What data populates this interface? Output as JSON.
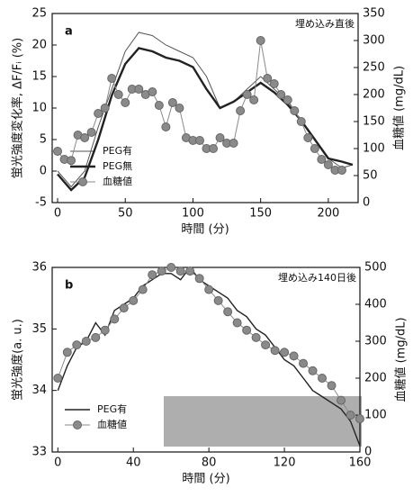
{
  "chart_data": [
    {
      "type": "line",
      "panel_label": "a",
      "annotation": "埋め込み直後",
      "x_label": "時間 (分)",
      "y_label": "蛍光強度変化率, ΔF/Fᵢ (%)",
      "y2_label": "血糖値 (mg/dL)",
      "xlim": [
        -4,
        222
      ],
      "xticks": [
        0,
        50,
        100,
        150,
        200
      ],
      "ylim": [
        -5,
        25
      ],
      "yticks": [
        -5,
        0,
        5,
        10,
        15,
        20,
        25
      ],
      "y2lim": [
        0,
        350
      ],
      "y2ticks": [
        0,
        50,
        100,
        150,
        200,
        250,
        300,
        350
      ],
      "series": [
        {
          "name": "PEG有",
          "color": "#555555",
          "line_width": 1,
          "x": [
            0,
            10,
            20,
            30,
            40,
            50,
            60,
            70,
            80,
            90,
            100,
            110,
            120,
            130,
            140,
            150,
            160,
            170,
            180,
            190,
            200,
            210,
            218
          ],
          "values": [
            0,
            -2.5,
            0,
            7,
            13,
            19,
            22,
            21.5,
            20,
            19,
            18,
            15,
            10,
            11,
            13,
            15,
            13,
            11,
            8,
            5,
            2,
            0.5,
            1
          ]
        },
        {
          "name": "PEG無",
          "color": "#222222",
          "line_width": 2.4,
          "x": [
            0,
            10,
            20,
            30,
            40,
            50,
            60,
            70,
            80,
            90,
            100,
            110,
            120,
            130,
            140,
            150,
            160,
            170,
            180,
            190,
            200,
            210,
            218
          ],
          "values": [
            -0.5,
            -3,
            -1,
            5,
            12,
            17,
            19.5,
            19,
            18,
            17.5,
            16.5,
            13,
            10,
            11,
            12.5,
            14,
            12.5,
            10.5,
            8,
            5,
            2,
            1.5,
            1
          ]
        },
        {
          "name": "血糖値",
          "color": "#8a8a8a",
          "axis": "y2",
          "marker": "circle",
          "x": [
            0,
            5,
            10,
            15,
            20,
            25,
            30,
            35,
            40,
            45,
            50,
            55,
            60,
            65,
            70,
            75,
            80,
            85,
            90,
            95,
            100,
            105,
            110,
            115,
            120,
            125,
            130,
            135,
            140,
            145,
            150,
            155,
            160,
            165,
            170,
            175,
            180,
            185,
            190,
            195,
            200,
            205,
            210
          ],
          "values": [
            95,
            80,
            78,
            125,
            120,
            130,
            165,
            175,
            230,
            200,
            185,
            210,
            210,
            200,
            205,
            180,
            140,
            185,
            175,
            120,
            115,
            115,
            100,
            100,
            120,
            110,
            110,
            170,
            200,
            190,
            300,
            230,
            220,
            200,
            190,
            170,
            150,
            120,
            100,
            80,
            70,
            60,
            60
          ]
        }
      ]
    },
    {
      "type": "line",
      "panel_label": "b",
      "annotation": "埋め込み140日後",
      "x_label": "時間 (分)",
      "y_label": "蛍光強度(a. u.)",
      "y2_label": "血糖値 (mg/dL)",
      "xlim": [
        -3,
        160
      ],
      "xticks": [
        0,
        40,
        80,
        120,
        160
      ],
      "ylim": [
        33,
        36
      ],
      "yticks": [
        33,
        34,
        35,
        36
      ],
      "y2lim": [
        0,
        500
      ],
      "y2ticks": [
        0,
        100,
        200,
        300,
        400,
        500
      ],
      "series": [
        {
          "name": "PEG有",
          "color": "#222222",
          "line_width": 1.4,
          "x": [
            0,
            5,
            10,
            15,
            20,
            25,
            30,
            35,
            40,
            45,
            50,
            55,
            60,
            65,
            70,
            75,
            80,
            85,
            90,
            95,
            100,
            105,
            110,
            115,
            120,
            125,
            130,
            135,
            140,
            145,
            150,
            155,
            160
          ],
          "values": [
            34.0,
            34.4,
            34.7,
            34.8,
            35.1,
            34.9,
            35.3,
            35.4,
            35.5,
            35.7,
            35.8,
            35.9,
            35.9,
            35.8,
            36.0,
            35.8,
            35.7,
            35.6,
            35.5,
            35.3,
            35.2,
            35.0,
            34.9,
            34.7,
            34.5,
            34.4,
            34.2,
            34.0,
            33.9,
            33.8,
            33.7,
            33.5,
            33.1
          ]
        },
        {
          "name": "血糖値",
          "color": "#8a8a8a",
          "axis": "y2",
          "marker": "circle",
          "x": [
            0,
            5,
            10,
            15,
            20,
            25,
            30,
            35,
            40,
            45,
            50,
            55,
            60,
            65,
            70,
            75,
            80,
            85,
            90,
            95,
            100,
            105,
            110,
            115,
            120,
            125,
            130,
            135,
            140,
            145,
            150,
            155,
            160
          ],
          "values": [
            200,
            270,
            290,
            300,
            310,
            330,
            360,
            390,
            410,
            440,
            480,
            490,
            500,
            490,
            490,
            470,
            440,
            410,
            380,
            350,
            330,
            310,
            290,
            275,
            270,
            260,
            240,
            220,
            200,
            180,
            140,
            100,
            90
          ]
        }
      ]
    }
  ]
}
